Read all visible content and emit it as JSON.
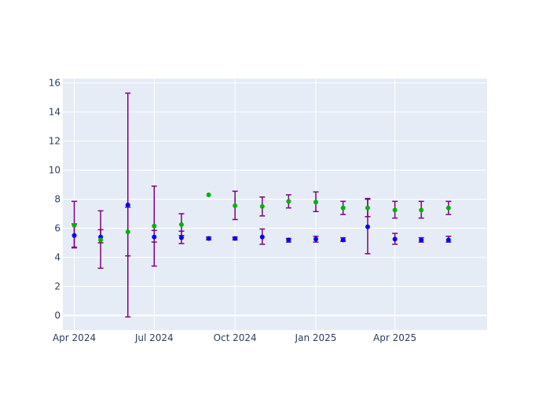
{
  "chart_data": {
    "type": "scatter",
    "x_tick_labels": [
      "Apr 2024",
      "Jul 2024",
      "Oct 2024",
      "Jan 2025",
      "Apr 2025"
    ],
    "x_tick_dates": [
      "2024-04-01",
      "2024-07-01",
      "2024-10-01",
      "2025-01-01",
      "2025-04-01"
    ],
    "xlim": [
      "2024-03-19",
      "2025-07-15"
    ],
    "y_ticks": [
      0,
      2,
      4,
      6,
      8,
      10,
      12,
      14,
      16
    ],
    "ylim": [
      -1,
      16.3
    ],
    "grid": true,
    "colors": {
      "plot_bg": "#e5ecf6",
      "grid": "#ffffff",
      "error_bar": "#800080",
      "series_blue": "#0000ff",
      "series_green": "#00b300"
    },
    "series": [
      {
        "color": "#0000ff",
        "points": [
          {
            "x": "2024-04-01",
            "y": 5.5,
            "ylow": 4.7,
            "yhigh": 6.3
          },
          {
            "x": "2024-05-01",
            "y": 5.4,
            "ylow": 5.0,
            "yhigh": 5.9
          },
          {
            "x": "2024-06-01",
            "y": 7.6,
            "ylow": -0.1,
            "yhigh": 15.3
          },
          {
            "x": "2024-07-01",
            "y": 5.4,
            "ylow": 5.05,
            "yhigh": 5.85
          },
          {
            "x": "2024-08-01",
            "y": 5.35,
            "ylow": 4.95,
            "yhigh": 5.8
          },
          {
            "x": "2024-09-01",
            "y": 5.3,
            "ylow": 5.2,
            "yhigh": 5.4
          },
          {
            "x": "2024-10-01",
            "y": 5.3,
            "ylow": 5.2,
            "yhigh": 5.4
          },
          {
            "x": "2024-11-01",
            "y": 5.4,
            "ylow": 4.9,
            "yhigh": 5.95
          },
          {
            "x": "2024-12-01",
            "y": 5.2,
            "ylow": 5.05,
            "yhigh": 5.3
          },
          {
            "x": "2025-01-01",
            "y": 5.25,
            "ylow": 5.05,
            "yhigh": 5.45
          },
          {
            "x": "2025-02-01",
            "y": 5.2,
            "ylow": 5.1,
            "yhigh": 5.35
          },
          {
            "x": "2025-03-01",
            "y": 6.1,
            "ylow": 4.25,
            "yhigh": 8.0
          },
          {
            "x": "2025-04-01",
            "y": 5.25,
            "ylow": 4.9,
            "yhigh": 5.65
          },
          {
            "x": "2025-05-01",
            "y": 5.2,
            "ylow": 5.05,
            "yhigh": 5.35
          },
          {
            "x": "2025-06-01",
            "y": 5.2,
            "ylow": 5.05,
            "yhigh": 5.45
          }
        ]
      },
      {
        "color": "#00b300",
        "points": [
          {
            "x": "2024-04-01",
            "y": 6.2,
            "ylow": 4.65,
            "yhigh": 7.85
          },
          {
            "x": "2024-05-01",
            "y": 5.2,
            "ylow": 3.25,
            "yhigh": 7.2
          },
          {
            "x": "2024-06-01",
            "y": 5.75,
            "ylow": 4.1,
            "yhigh": 7.45
          },
          {
            "x": "2024-07-01",
            "y": 6.15,
            "ylow": 3.4,
            "yhigh": 8.9
          },
          {
            "x": "2024-08-01",
            "y": 6.25,
            "ylow": 5.5,
            "yhigh": 7.0
          },
          {
            "x": "2024-09-01",
            "y": 8.3,
            "ylow": 8.3,
            "yhigh": 8.3
          },
          {
            "x": "2024-10-01",
            "y": 7.55,
            "ylow": 6.6,
            "yhigh": 8.55
          },
          {
            "x": "2024-11-01",
            "y": 7.5,
            "ylow": 6.85,
            "yhigh": 8.15
          },
          {
            "x": "2024-12-01",
            "y": 7.85,
            "ylow": 7.4,
            "yhigh": 8.3
          },
          {
            "x": "2025-01-01",
            "y": 7.8,
            "ylow": 7.15,
            "yhigh": 8.5
          },
          {
            "x": "2025-02-01",
            "y": 7.4,
            "ylow": 6.95,
            "yhigh": 7.85
          },
          {
            "x": "2025-03-01",
            "y": 7.4,
            "ylow": 6.8,
            "yhigh": 8.05
          },
          {
            "x": "2025-04-01",
            "y": 7.25,
            "ylow": 6.7,
            "yhigh": 7.85
          },
          {
            "x": "2025-05-01",
            "y": 7.25,
            "ylow": 6.7,
            "yhigh": 7.85
          },
          {
            "x": "2025-06-01",
            "y": 7.4,
            "ylow": 6.95,
            "yhigh": 7.85
          }
        ]
      }
    ]
  }
}
